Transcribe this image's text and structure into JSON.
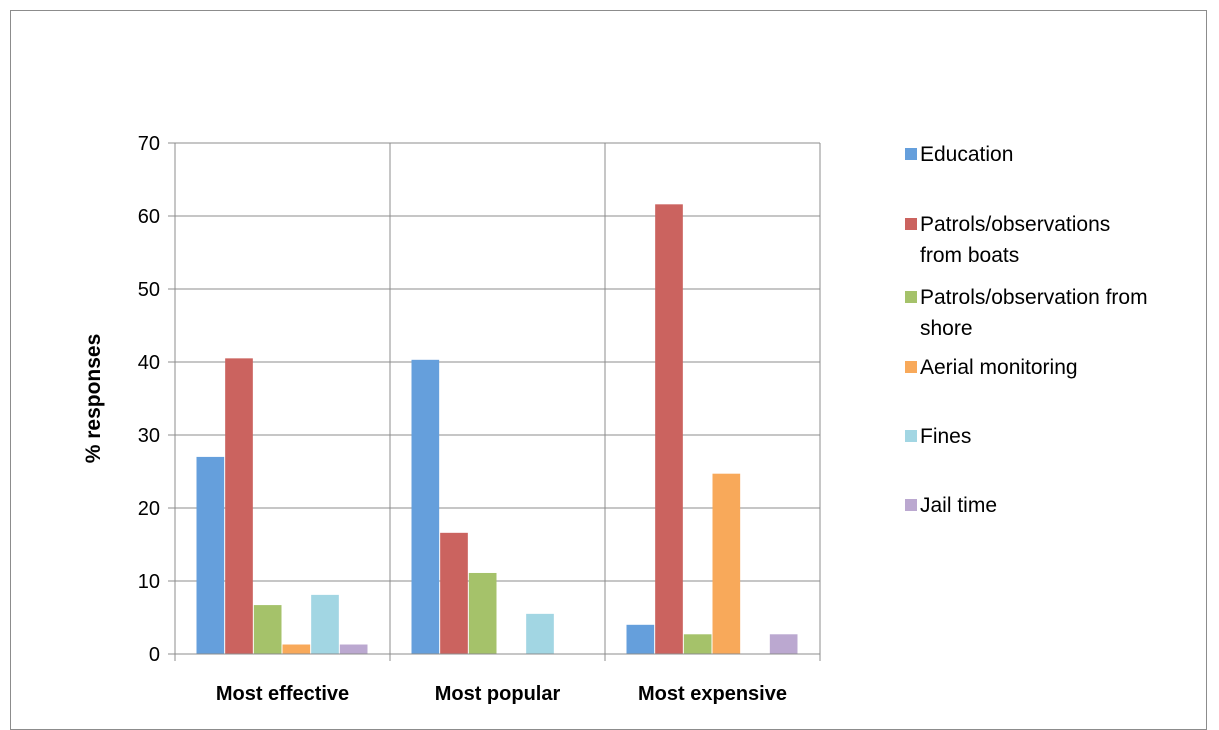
{
  "chart_data": {
    "type": "bar",
    "title": "",
    "xlabel": "",
    "ylabel": "% responses",
    "ylim": [
      0,
      70
    ],
    "yticks": [
      0,
      10,
      20,
      30,
      40,
      50,
      60,
      70
    ],
    "grid": true,
    "legend_position": "right",
    "categories": [
      "Most effective",
      "Most popular",
      "Most expensive"
    ],
    "series": [
      {
        "name": "Education",
        "name_lines": [
          "Education"
        ],
        "color": "#659fdc",
        "values": [
          27,
          40.3,
          4
        ]
      },
      {
        "name": "Patrols/observations from boats",
        "name_lines": [
          "Patrols/observations",
          "from boats"
        ],
        "color": "#cb635f",
        "values": [
          40.5,
          16.6,
          61.6
        ]
      },
      {
        "name": "Patrols/observation from shore",
        "name_lines": [
          "Patrols/observation from",
          "shore"
        ],
        "color": "#a5c26a",
        "values": [
          6.7,
          11.1,
          2.7
        ]
      },
      {
        "name": "Aerial monitoring",
        "name_lines": [
          "Aerial monitoring"
        ],
        "color": "#f8a95a",
        "values": [
          1.3,
          0,
          24.7
        ]
      },
      {
        "name": "Fines",
        "name_lines": [
          "Fines"
        ],
        "color": "#a2d6e3",
        "values": [
          8.1,
          5.5,
          0
        ]
      },
      {
        "name": "Jail time",
        "name_lines": [
          "Jail time"
        ],
        "color": "#bba8d0",
        "values": [
          1.3,
          0,
          2.7
        ]
      }
    ]
  }
}
